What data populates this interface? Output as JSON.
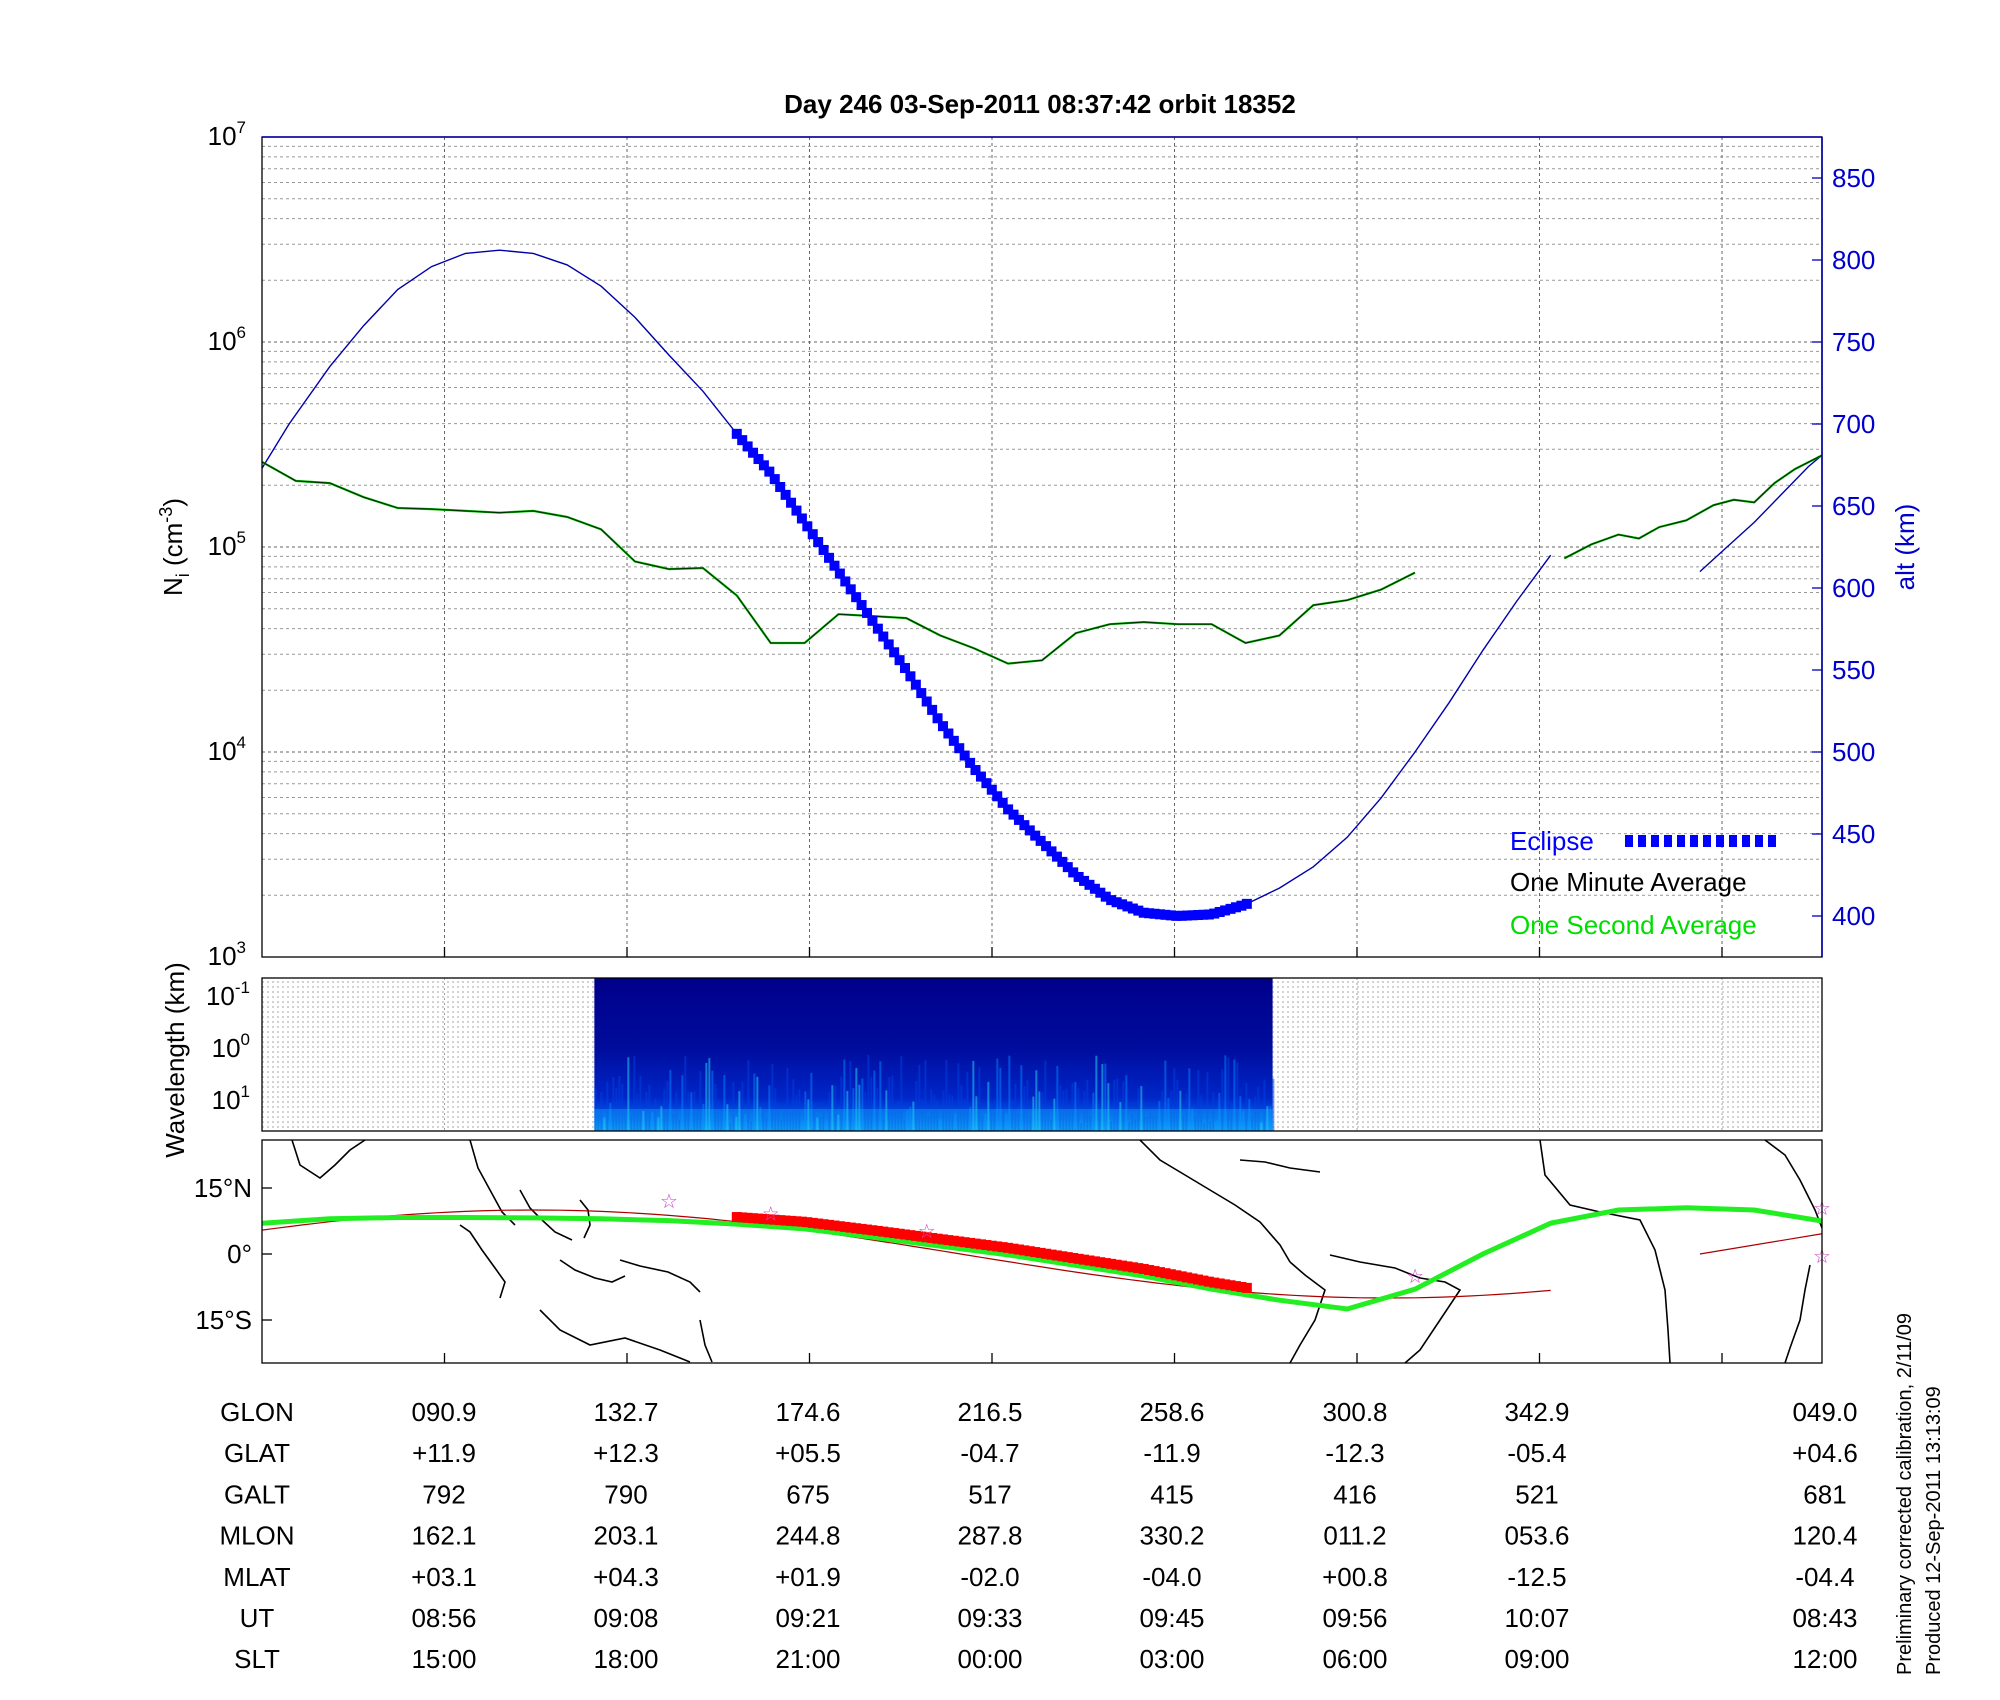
{
  "title": "Day 246  03-Sep-2011 08:37:42   orbit 18352",
  "colors": {
    "altitude": "#0000aa",
    "eclipse": "#0000ff",
    "one_minute_average": "#000000",
    "one_second_average": "#00dd00",
    "map_track": "#22ee22",
    "map_eclipse": "#ff0000",
    "map_orbit": "#aa0000",
    "stars": "#cc44cc"
  },
  "chart_data": [
    {
      "type": "line",
      "panel": "density",
      "ylabel": "N_i (cm^-3)",
      "y_scale": "log",
      "ylim": [
        1000,
        10000000
      ],
      "left_ticks": [
        {
          "base": "10",
          "exp": "3",
          "value": 1000
        },
        {
          "base": "10",
          "exp": "4",
          "value": 10000
        },
        {
          "base": "10",
          "exp": "5",
          "value": 100000
        },
        {
          "base": "10",
          "exp": "6",
          "value": 1000000
        },
        {
          "base": "10",
          "exp": "7",
          "value": 10000000
        }
      ],
      "y2label": "alt (km)",
      "y2lim": [
        375,
        875
      ],
      "right_ticks": [
        "400",
        "450",
        "500",
        "550",
        "600",
        "650",
        "700",
        "750",
        "800",
        "850"
      ],
      "grid": true,
      "legend_position": "bottom-right",
      "legend": [
        {
          "name": "Eclipse",
          "color": "#0000ff"
        },
        {
          "name": "One Minute Average",
          "color": "#000000"
        },
        {
          "name": "One Second Average",
          "color": "#00dd00"
        }
      ],
      "x": [
        0,
        0.25,
        0.5,
        0.75,
        1,
        1.25,
        1.5,
        1.75,
        2,
        2.25,
        2.5,
        2.75,
        3,
        3.25,
        3.5,
        3.75,
        4,
        4.25,
        4.5,
        4.75,
        5,
        5.25,
        5.5,
        5.75,
        6,
        6.25,
        6.5,
        6.75,
        7,
        7.25,
        7.5,
        7.75,
        8,
        8.25,
        8.5,
        9.6,
        9.8,
        10,
        10.15,
        10.3,
        10.5,
        10.7,
        10.85,
        11,
        11.15,
        11.3,
        11.5
      ],
      "series": [
        {
          "key": "ion_density",
          "values": [
            260000,
            210000,
            205000,
            175000,
            155000,
            153000,
            150000,
            147000,
            150000,
            140000,
            122000,
            85000,
            78000,
            79000,
            58000,
            34000,
            34000,
            47000,
            46000,
            45000,
            37000,
            32000,
            27000,
            28000,
            38000,
            42000,
            43000,
            42000,
            42000,
            34000,
            37000,
            52000,
            55000,
            62000,
            75000,
            88000,
            103000,
            115000,
            110000,
            125000,
            135000,
            160000,
            170000,
            165000,
            205000,
            240000,
            280000
          ]
        },
        {
          "key": "altitude_km",
          "x": [
            0,
            0.2,
            0.5,
            0.75,
            1,
            1.25,
            1.5,
            1.75,
            2,
            2.25,
            2.5,
            2.75,
            3,
            3.25,
            3.5,
            3.75,
            4,
            4.25,
            4.5,
            4.75,
            5,
            5.25,
            5.5,
            5.75,
            6,
            6.25,
            6.5,
            6.75,
            7,
            7.25,
            7.5,
            7.75,
            8,
            8.25,
            8.5,
            8.75,
            9,
            9.25,
            9.5,
            9.6,
            10.6,
            10.8,
            11,
            11.2,
            11.4,
            11.5
          ],
          "values": [
            673,
            700,
            735,
            760,
            782,
            796,
            804,
            806,
            804,
            797,
            784,
            765,
            742,
            720,
            694,
            670,
            640,
            610,
            580,
            550,
            518,
            490,
            465,
            445,
            425,
            410,
            402,
            400,
            401,
            407,
            417,
            430,
            448,
            472,
            500,
            530,
            562,
            592,
            620,
            null,
            610,
            625,
            640,
            657,
            674,
            681
          ]
        }
      ],
      "eclipse_range": [
        3.5,
        7.3
      ]
    },
    {
      "type": "heatmap",
      "panel": "spectrogram",
      "ylabel": "Wavelength (km)",
      "y_ticks": [
        {
          "base": "10",
          "exp": "-1"
        },
        {
          "base": "10",
          "exp": "0"
        },
        {
          "base": "10",
          "exp": "1"
        }
      ],
      "x_range_with_data": [
        2.45,
        7.45
      ],
      "colormap": "jet"
    },
    {
      "type": "map",
      "panel": "ground_track",
      "y_ticks": [
        "15°N",
        "0°",
        "15°S"
      ],
      "track": {
        "lon_offset_x": [
          0,
          0.5,
          1,
          1.5,
          2,
          2.5,
          3,
          3.5,
          4,
          4.5,
          5,
          5.5,
          6,
          6.5,
          7,
          7.5,
          8,
          8.5,
          9,
          9.5,
          10,
          10.5,
          11,
          11.5
        ],
        "lat": [
          7,
          8,
          8.3,
          8.3,
          8.2,
          8,
          7.6,
          6.8,
          5.7,
          3.8,
          1.8,
          -0.2,
          -2.6,
          -5,
          -8,
          -10.5,
          -12.5,
          -8,
          0,
          7,
          10,
          10.5,
          10,
          7.5
        ]
      },
      "eclipse_range": [
        3.5,
        7.3
      ],
      "stars_x": [
        3,
        3.75,
        4.9,
        8.5,
        11.5,
        11.5
      ]
    }
  ],
  "ephemeris": {
    "rows": [
      {
        "label": "GLON",
        "values": [
          "090.9",
          "132.7",
          "174.6",
          "216.5",
          "258.6",
          "300.8",
          "342.9",
          "049.0"
        ]
      },
      {
        "label": "GLAT",
        "values": [
          "+11.9",
          "+12.3",
          "+05.5",
          "-04.7",
          "-11.9",
          "-12.3",
          "-05.4",
          "+04.6"
        ]
      },
      {
        "label": "GALT",
        "values": [
          "792",
          "790",
          "675",
          "517",
          "415",
          "416",
          "521",
          "681"
        ]
      },
      {
        "label": "MLON",
        "values": [
          "162.1",
          "203.1",
          "244.8",
          "287.8",
          "330.2",
          "011.2",
          "053.6",
          "120.4"
        ]
      },
      {
        "label": "MLAT",
        "values": [
          "+03.1",
          "+04.3",
          "+01.9",
          "-02.0",
          "-04.0",
          "+00.8",
          "-12.5",
          "-04.4"
        ]
      },
      {
        "label": "UT",
        "values": [
          "08:56",
          "09:08",
          "09:21",
          "09:33",
          "09:45",
          "09:56",
          "10:07",
          "08:43"
        ]
      },
      {
        "label": "SLT",
        "values": [
          "15:00",
          "18:00",
          "21:00",
          "00:00",
          "03:00",
          "06:00",
          "09:00",
          "12:00"
        ]
      }
    ]
  },
  "footnote": {
    "line1": "Preliminary corrected calibration, 2/11/09",
    "line2": "Produced 12-Sep-2011 13:13:09"
  }
}
